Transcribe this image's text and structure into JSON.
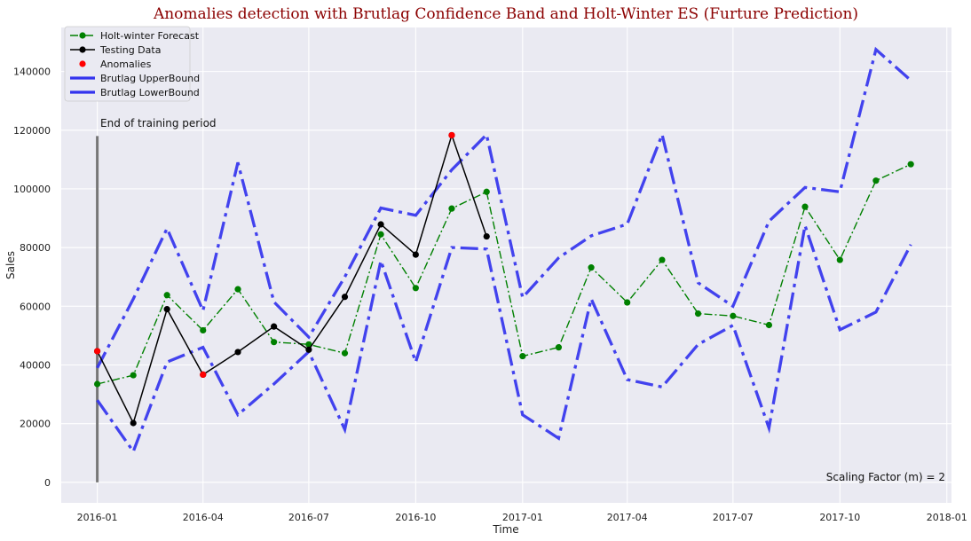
{
  "chart_data": {
    "type": "line",
    "title": "Anomalies detection with Brutlag Confidence Band and Holt-Winter ES (Furture Prediction)",
    "xlabel": "Time",
    "ylabel": "Sales",
    "x_ticks": [
      "2016-01",
      "2016-04",
      "2016-07",
      "2016-10",
      "2017-01",
      "2017-04",
      "2017-07",
      "2017-10",
      "2018-01"
    ],
    "y_ticks": [
      0,
      20000,
      40000,
      60000,
      80000,
      100000,
      120000,
      140000
    ],
    "xlim": [
      "2015-12-01",
      "2018-01-05"
    ],
    "ylim": [
      -7000,
      155000
    ],
    "grid": true,
    "legend_position": "top-left",
    "annotations": {
      "training_end_label": "End of training period",
      "training_end_date": "2016-01-01",
      "training_end_line_ymax": 118000,
      "scaling_factor": "Scaling Factor (m) = 2"
    },
    "series": [
      {
        "name": "Holt-winter Forecast",
        "color": "#008000",
        "style": "dashdot-marker",
        "x": [
          "2016-01-01",
          "2016-02-01",
          "2016-03-01",
          "2016-04-01",
          "2016-05-01",
          "2016-06-01",
          "2016-07-01",
          "2016-08-01",
          "2016-09-01",
          "2016-10-01",
          "2016-11-01",
          "2016-12-01",
          "2017-01-01",
          "2017-02-01",
          "2017-03-01",
          "2017-04-01",
          "2017-05-01",
          "2017-06-01",
          "2017-07-01",
          "2017-08-01",
          "2017-09-01",
          "2017-10-01",
          "2017-11-01",
          "2017-12-01"
        ],
        "values": [
          33500,
          36500,
          63800,
          51800,
          65800,
          47800,
          47000,
          44000,
          84500,
          66200,
          93300,
          99000,
          43000,
          46000,
          73200,
          61300,
          75800,
          57500,
          56700,
          53600,
          93900,
          75800,
          102800,
          108400
        ]
      },
      {
        "name": "Testing Data",
        "color": "#000000",
        "style": "solid-marker",
        "x": [
          "2016-01-01",
          "2016-02-01",
          "2016-03-01",
          "2016-04-01",
          "2016-05-01",
          "2016-06-01",
          "2016-07-01",
          "2016-08-01",
          "2016-09-01",
          "2016-10-01",
          "2016-11-01",
          "2016-12-01"
        ],
        "values": [
          44700,
          20200,
          59000,
          36700,
          44400,
          53100,
          45200,
          63200,
          87900,
          77600,
          118300,
          83800
        ]
      },
      {
        "name": "Anomalies",
        "color": "#ff0000",
        "style": "marker",
        "x": [
          "2016-01-01",
          "2016-04-01",
          "2016-11-01"
        ],
        "values": [
          44700,
          36700,
          118300
        ]
      },
      {
        "name": "Brutlag UpperBound",
        "color": "#3333ee",
        "style": "dashdot-thick",
        "x": [
          "2016-01-01",
          "2016-02-01",
          "2016-03-01",
          "2016-04-01",
          "2016-05-01",
          "2016-06-01",
          "2016-07-01",
          "2016-08-01",
          "2016-09-01",
          "2016-10-01",
          "2016-11-01",
          "2016-12-01",
          "2017-01-01",
          "2017-02-01",
          "2017-03-01",
          "2017-04-01",
          "2017-05-01",
          "2017-06-01",
          "2017-07-01",
          "2017-08-01",
          "2017-09-01",
          "2017-10-01",
          "2017-11-01",
          "2017-12-01"
        ],
        "values": [
          39000,
          62500,
          86500,
          58500,
          109000,
          61500,
          49500,
          70000,
          93500,
          91000,
          106500,
          118500,
          63000,
          76500,
          84000,
          88000,
          118500,
          68000,
          60000,
          89000,
          100500,
          99000,
          147500,
          137000
        ]
      },
      {
        "name": "Brutlag LowerBound",
        "color": "#3333ee",
        "style": "dashdot-thick",
        "x": [
          "2016-01-01",
          "2016-02-01",
          "2016-03-01",
          "2016-04-01",
          "2016-05-01",
          "2016-06-01",
          "2016-07-01",
          "2016-08-01",
          "2016-09-01",
          "2016-10-01",
          "2016-11-01",
          "2016-12-01",
          "2017-01-01",
          "2017-02-01",
          "2017-03-01",
          "2017-04-01",
          "2017-05-01",
          "2017-06-01",
          "2017-07-01",
          "2017-08-01",
          "2017-09-01",
          "2017-10-01",
          "2017-11-01",
          "2017-12-01"
        ],
        "values": [
          28000,
          10500,
          41000,
          46000,
          23000,
          33500,
          44500,
          18000,
          75500,
          41000,
          80000,
          79500,
          23000,
          15000,
          62500,
          35000,
          32500,
          47000,
          53500,
          18500,
          87500,
          52000,
          58000,
          81000
        ]
      }
    ]
  }
}
